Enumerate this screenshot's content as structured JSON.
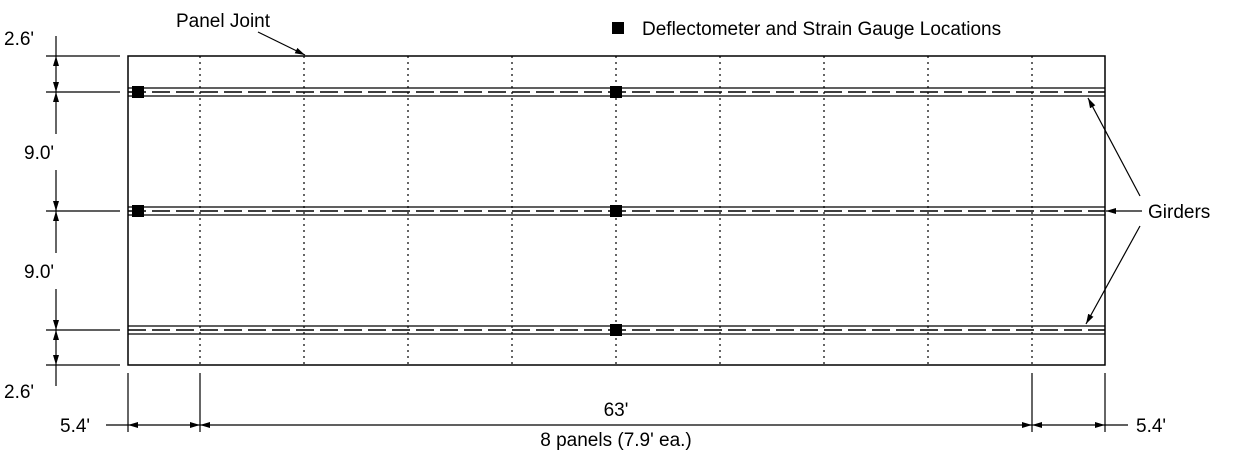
{
  "colors": {
    "ink": "#000000",
    "background": "#ffffff"
  },
  "labels": {
    "panel_joint": "Panel Joint",
    "legend": "Deflectometer and Strain Gauge Locations",
    "girders": "Girders"
  },
  "dimensions": {
    "overhang_top": "2.6'",
    "spacing_1": "9.0'",
    "spacing_2": "9.0'",
    "overhang_bottom": "2.6'",
    "end_left": "5.4'",
    "span": "63'",
    "panels": "8 panels (7.9' ea.)",
    "end_right": "5.4'"
  },
  "legend_icon": "filled-square"
}
